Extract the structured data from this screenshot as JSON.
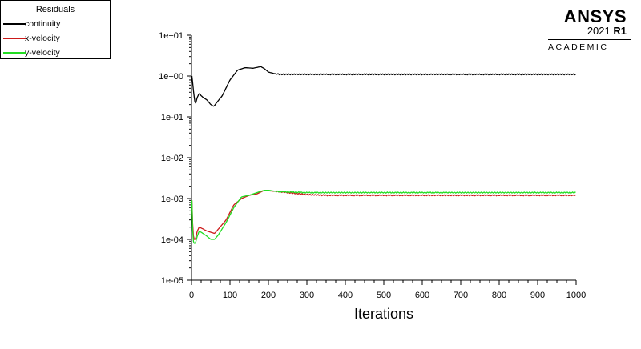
{
  "legend": {
    "title": "Residuals",
    "items": [
      {
        "label": "continuity",
        "color": "#000000"
      },
      {
        "label": "x-velocity",
        "color": "#cc1a1a"
      },
      {
        "label": "y-velocity",
        "color": "#22dd22"
      }
    ]
  },
  "logo": {
    "brand": "ANSYS",
    "version_year": "2021",
    "version_release": "R1",
    "edition": "ACADEMIC"
  },
  "chart_data": {
    "type": "line",
    "xlabel": "Iterations",
    "ylabel": "",
    "xlim": [
      0,
      1000
    ],
    "ylim": [
      1e-05,
      10
    ],
    "yscale": "log",
    "xticks": [
      0,
      100,
      200,
      300,
      400,
      500,
      600,
      700,
      800,
      900,
      1000
    ],
    "yticks": [
      {
        "value": 10,
        "label": "1e+01"
      },
      {
        "value": 1,
        "label": "1e+00"
      },
      {
        "value": 0.1,
        "label": "1e-01"
      },
      {
        "value": 0.01,
        "label": "1e-02"
      },
      {
        "value": 0.001,
        "label": "1e-03"
      },
      {
        "value": 0.0001,
        "label": "1e-04"
      },
      {
        "value": 1e-05,
        "label": "1e-05"
      }
    ],
    "grid": false,
    "legend_position": "top-left outside",
    "series": [
      {
        "name": "continuity",
        "color": "#000000",
        "x": [
          1,
          3,
          6,
          10,
          15,
          20,
          25,
          30,
          40,
          50,
          58,
          65,
          80,
          100,
          120,
          140,
          160,
          180,
          190,
          200,
          215,
          230,
          260,
          300,
          400,
          500,
          600,
          700,
          800,
          900,
          1000
        ],
        "y": [
          1.0,
          0.7,
          0.35,
          0.2,
          0.3,
          0.38,
          0.33,
          0.3,
          0.26,
          0.2,
          0.18,
          0.22,
          0.33,
          0.8,
          1.4,
          1.6,
          1.55,
          1.7,
          1.5,
          1.25,
          1.15,
          1.1,
          1.1,
          1.1,
          1.1,
          1.1,
          1.1,
          1.1,
          1.1,
          1.1,
          1.1
        ]
      },
      {
        "name": "x-velocity",
        "color": "#cc1a1a",
        "x": [
          1,
          2,
          4,
          6,
          10,
          15,
          20,
          30,
          40,
          50,
          60,
          70,
          90,
          110,
          130,
          150,
          170,
          190,
          200,
          220,
          250,
          300,
          350,
          400,
          500,
          600,
          700,
          800,
          900,
          1000
        ],
        "y": [
          0.0009,
          0.0004,
          0.00015,
          0.0001,
          0.0001,
          0.00016,
          0.0002,
          0.00018,
          0.00016,
          0.00015,
          0.00014,
          0.00018,
          0.0003,
          0.0007,
          0.001,
          0.0012,
          0.0013,
          0.0016,
          0.00155,
          0.0015,
          0.0014,
          0.00125,
          0.0012,
          0.0012,
          0.0012,
          0.0012,
          0.0012,
          0.0012,
          0.0012,
          0.0012
        ]
      },
      {
        "name": "y-velocity",
        "color": "#22dd22",
        "x": [
          1,
          2,
          4,
          6,
          10,
          15,
          20,
          30,
          40,
          50,
          60,
          70,
          90,
          110,
          130,
          150,
          170,
          190,
          200,
          220,
          250,
          300,
          350,
          400,
          500,
          600,
          700,
          800,
          900,
          1000
        ],
        "y": [
          0.0009,
          0.0003,
          0.0001,
          8e-05,
          8e-05,
          0.00012,
          0.00016,
          0.00014,
          0.00012,
          0.0001,
          0.0001,
          0.00013,
          0.00026,
          0.0006,
          0.0011,
          0.0012,
          0.0014,
          0.0016,
          0.0016,
          0.0015,
          0.00145,
          0.0014,
          0.0014,
          0.0014,
          0.0014,
          0.0014,
          0.0014,
          0.0014,
          0.0014,
          0.0014
        ]
      }
    ]
  }
}
